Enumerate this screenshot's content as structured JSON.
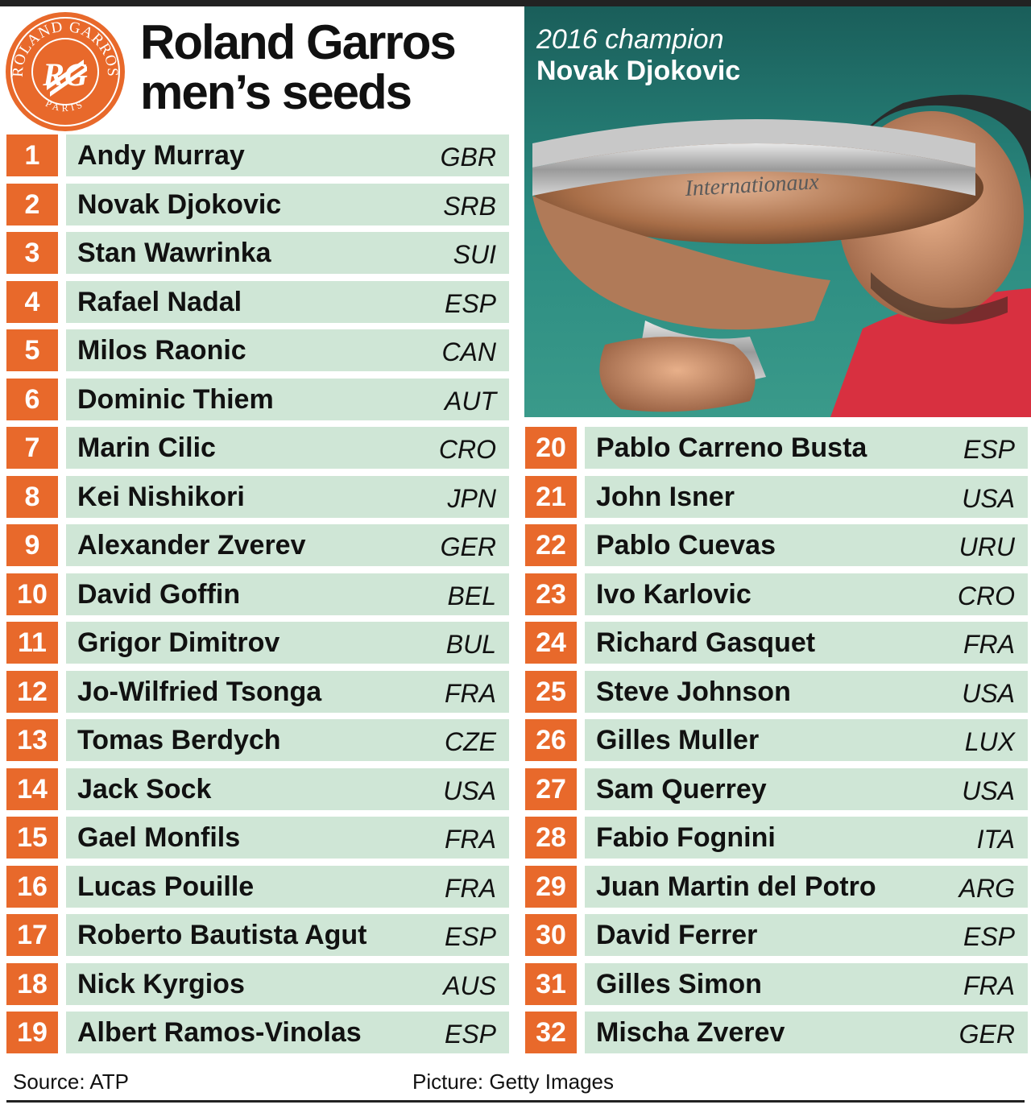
{
  "colors": {
    "seed_bg": "#e8692b",
    "row_bg": "#cfe6d6",
    "logo": "#e8692b",
    "photo_bg": "#1e6f6a"
  },
  "logo": {
    "icon": "roland-garros-logo-icon",
    "text_top": "ROLAND GARROS",
    "text_bottom": "PARIS",
    "monogram": "RG"
  },
  "title": {
    "line1": "Roland Garros",
    "line2": "men’s seeds"
  },
  "photo": {
    "icon": "trophy-photo-icon",
    "caption_year": "2016 champion",
    "caption_name": "Novak Djokovic",
    "trophy_engraving": "Internationaux"
  },
  "seeds_left": [
    {
      "seed": "1",
      "name": "Andy Murray",
      "country": "GBR"
    },
    {
      "seed": "2",
      "name": "Novak Djokovic",
      "country": "SRB"
    },
    {
      "seed": "3",
      "name": "Stan Wawrinka",
      "country": "SUI"
    },
    {
      "seed": "4",
      "name": "Rafael Nadal",
      "country": "ESP"
    },
    {
      "seed": "5",
      "name": "Milos Raonic",
      "country": "CAN"
    },
    {
      "seed": "6",
      "name": "Dominic Thiem",
      "country": "AUT"
    },
    {
      "seed": "7",
      "name": "Marin Cilic",
      "country": "CRO"
    },
    {
      "seed": "8",
      "name": "Kei Nishikori",
      "country": "JPN"
    },
    {
      "seed": "9",
      "name": "Alexander Zverev",
      "country": "GER"
    },
    {
      "seed": "10",
      "name": "David Goffin",
      "country": "BEL"
    },
    {
      "seed": "11",
      "name": "Grigor Dimitrov",
      "country": "BUL"
    },
    {
      "seed": "12",
      "name": "Jo-Wilfried Tsonga",
      "country": "FRA"
    },
    {
      "seed": "13",
      "name": "Tomas Berdych",
      "country": "CZE"
    },
    {
      "seed": "14",
      "name": "Jack Sock",
      "country": "USA"
    },
    {
      "seed": "15",
      "name": "Gael Monfils",
      "country": "FRA"
    },
    {
      "seed": "16",
      "name": "Lucas Pouille",
      "country": "FRA"
    },
    {
      "seed": "17",
      "name": "Roberto Bautista Agut",
      "country": "ESP"
    },
    {
      "seed": "18",
      "name": "Nick Kyrgios",
      "country": "AUS"
    },
    {
      "seed": "19",
      "name": "Albert Ramos-Vinolas",
      "country": "ESP"
    }
  ],
  "seeds_right": [
    {
      "seed": "20",
      "name": "Pablo Carreno Busta",
      "country": "ESP"
    },
    {
      "seed": "21",
      "name": "John Isner",
      "country": "USA"
    },
    {
      "seed": "22",
      "name": "Pablo Cuevas",
      "country": "URU"
    },
    {
      "seed": "23",
      "name": "Ivo Karlovic",
      "country": "CRO"
    },
    {
      "seed": "24",
      "name": "Richard Gasquet",
      "country": "FRA"
    },
    {
      "seed": "25",
      "name": "Steve Johnson",
      "country": "USA"
    },
    {
      "seed": "26",
      "name": "Gilles Muller",
      "country": "LUX"
    },
    {
      "seed": "27",
      "name": "Sam Querrey",
      "country": "USA"
    },
    {
      "seed": "28",
      "name": "Fabio Fognini",
      "country": "ITA"
    },
    {
      "seed": "29",
      "name": "Juan Martin del Potro",
      "country": "ARG"
    },
    {
      "seed": "30",
      "name": "David Ferrer",
      "country": "ESP"
    },
    {
      "seed": "31",
      "name": "Gilles Simon",
      "country": "FRA"
    },
    {
      "seed": "32",
      "name": "Mischa Zverev",
      "country": "GER"
    }
  ],
  "footer": {
    "source": "Source: ATP",
    "credit": "Picture: Getty Images"
  }
}
